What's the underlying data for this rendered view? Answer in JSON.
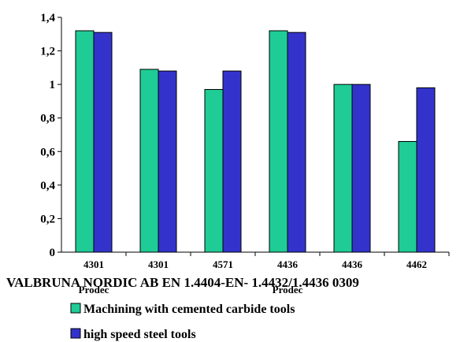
{
  "chart_data": {
    "type": "bar",
    "categories": [
      {
        "line1": "4301",
        "line2": "Prodec"
      },
      {
        "line1": "4301",
        "line2": ""
      },
      {
        "line1": "4571",
        "line2": ""
      },
      {
        "line1": "4436",
        "line2": "Prodec"
      },
      {
        "line1": "4436",
        "line2": ""
      },
      {
        "line1": "4462",
        "line2": ""
      }
    ],
    "series": [
      {
        "name": "Machining with cemented carbide tools",
        "color": "#1fcc96",
        "values": [
          1.32,
          1.09,
          0.97,
          1.32,
          1.0,
          0.66
        ]
      },
      {
        "name": "high speed steel tools",
        "color": "#3333cc",
        "values": [
          1.31,
          1.08,
          1.08,
          1.31,
          1.0,
          0.98
        ]
      }
    ],
    "ylim": [
      0,
      1.4
    ],
    "yticks": [
      "0",
      "0,2",
      "0,4",
      "0,6",
      "0,8",
      "1",
      "1,2",
      "1,4"
    ],
    "caption": "VALBRUNA NORDIC AB EN 1.4404-EN- 1.4432/1.4436  0309",
    "grid": false,
    "legend_position": "bottom"
  }
}
